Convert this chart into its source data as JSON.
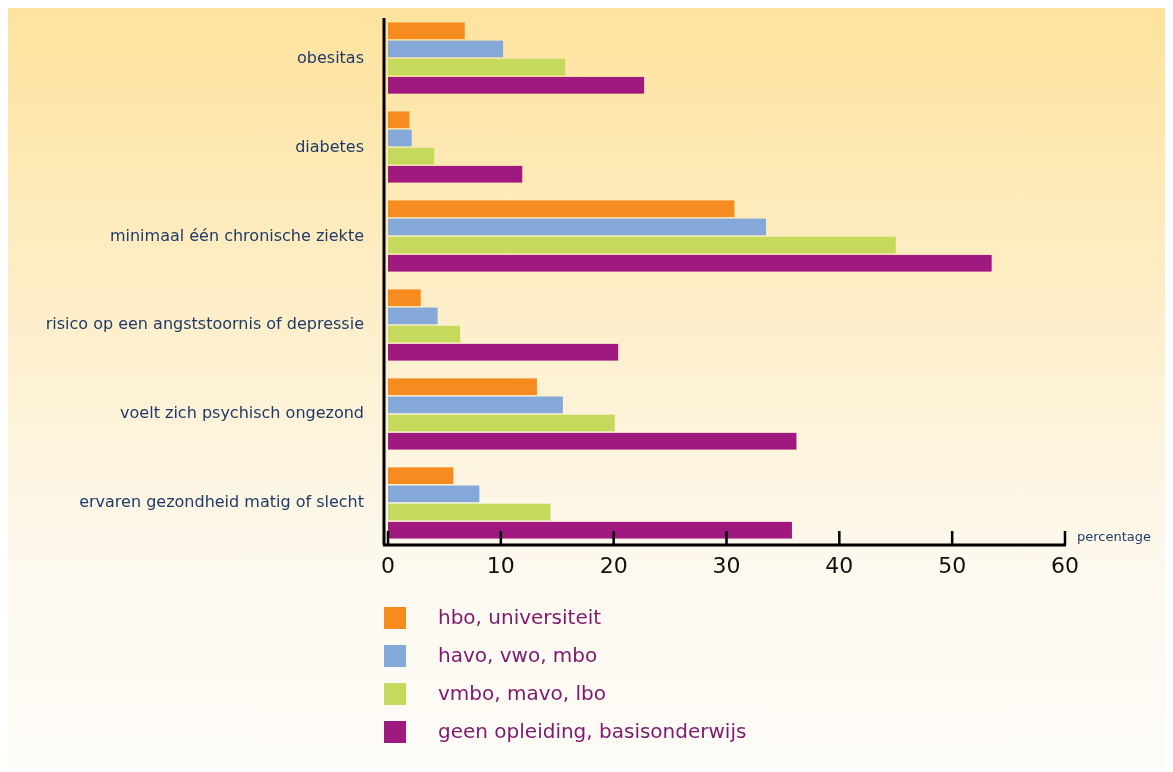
{
  "chart_data": {
    "type": "bar",
    "orientation": "horizontal",
    "xlabel": "percentage",
    "categories": [
      "obesitas",
      "diabetes",
      "minimaal één chronische ziekte",
      "risico op een angststoornis of depressie",
      "voelt zich psychisch ongezond",
      "ervaren gezondheid matig of slecht"
    ],
    "series": [
      {
        "name": "hbo, universiteit",
        "color": "#f68b1f",
        "values": [
          6.8,
          1.9,
          30.7,
          2.9,
          13.2,
          5.8
        ]
      },
      {
        "name": "havo, vwo, mbo",
        "color": "#84a9d8",
        "values": [
          10.2,
          2.1,
          33.5,
          4.4,
          15.5,
          8.1
        ]
      },
      {
        "name": "vmbo, mavo, lbo",
        "color": "#c5da5d",
        "values": [
          15.7,
          4.1,
          45.0,
          6.4,
          20.1,
          14.4
        ]
      },
      {
        "name": "geen opleiding, basisonderwijs",
        "color": "#a0197f",
        "values": [
          22.7,
          11.9,
          53.5,
          20.4,
          36.2,
          35.8
        ]
      }
    ],
    "xlim": [
      0,
      60
    ],
    "xticks": [
      0,
      10,
      20,
      30,
      40,
      50,
      60
    ],
    "grid": false,
    "legend": "bottom"
  }
}
